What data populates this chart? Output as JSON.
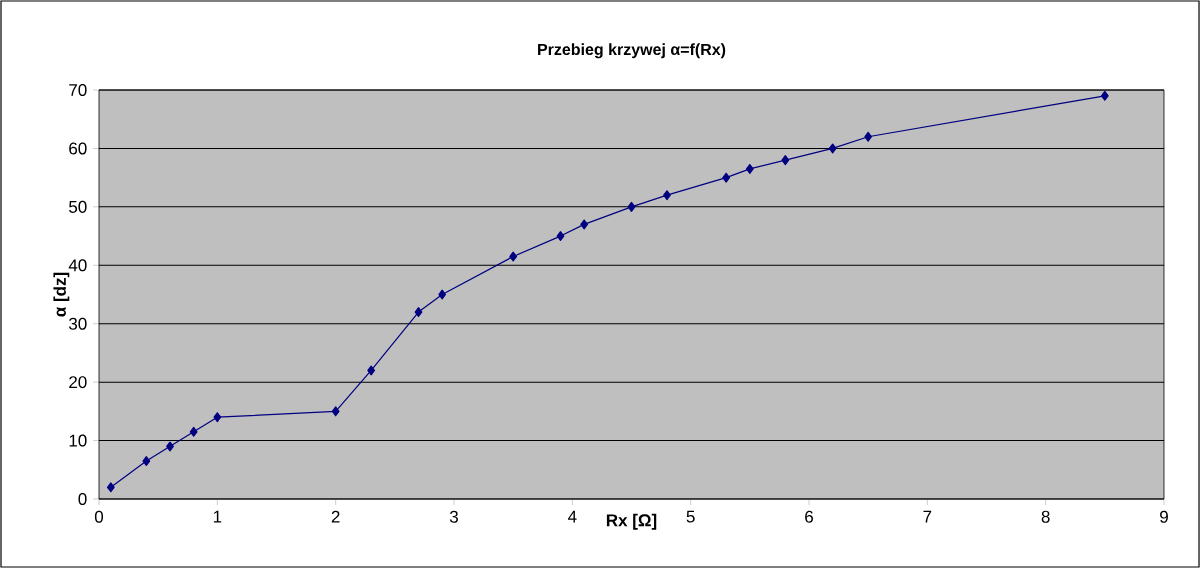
{
  "chart_data": {
    "type": "line",
    "title": "Przebieg krzywej α=f(Rx)",
    "xlabel": "Rx [Ω]",
    "ylabel": "α [dz]",
    "x": [
      0.1,
      0.4,
      0.6,
      0.8,
      1,
      2,
      2.3,
      2.7,
      2.9,
      3.5,
      3.9,
      4.1,
      4.5,
      4.8,
      5.3,
      5.5,
      5.8,
      6.2,
      6.5,
      8.5
    ],
    "series": [
      {
        "color": "#000080",
        "values": [
          2,
          6.5,
          9,
          11.5,
          14,
          15,
          22,
          32,
          35,
          41.5,
          45,
          47,
          50,
          52,
          55,
          56.5,
          58,
          60,
          62,
          69
        ]
      }
    ],
    "xlim": [
      0,
      9
    ],
    "xticks": [
      0,
      1,
      2,
      3,
      4,
      5,
      6,
      7,
      8,
      9
    ],
    "ylim": [
      0,
      70
    ],
    "yticks": [
      0,
      10,
      20,
      30,
      40,
      50,
      60,
      70
    ],
    "grid": "y",
    "marker": "diamond",
    "line_style": "solid"
  }
}
